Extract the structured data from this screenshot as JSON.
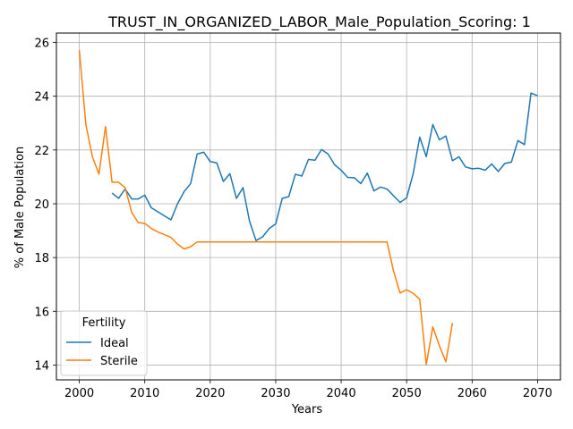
{
  "chart_data": {
    "type": "line",
    "title": "TRUST_IN_ORGANIZED_LABOR_Male_Population_Scoring: 1",
    "xlabel": "Years",
    "ylabel": "% of Male Population",
    "xlim": [
      1996.5,
      2073.5
    ],
    "ylim": [
      13.45,
      26.35
    ],
    "xticks": [
      2000,
      2010,
      2020,
      2030,
      2040,
      2050,
      2060,
      2070
    ],
    "yticks": [
      14,
      16,
      18,
      20,
      22,
      24,
      26
    ],
    "grid": true,
    "legend": {
      "title": "Fertility",
      "position": "lower-left"
    },
    "series": [
      {
        "name": "Ideal",
        "color": "#1f77b4",
        "x": [
          2005,
          2006,
          2007,
          2008,
          2009,
          2010,
          2011,
          2012,
          2013,
          2014,
          2015,
          2016,
          2017,
          2018,
          2019,
          2020,
          2021,
          2022,
          2023,
          2024,
          2025,
          2026,
          2027,
          2028,
          2029,
          2030,
          2031,
          2032,
          2033,
          2034,
          2035,
          2036,
          2037,
          2038,
          2039,
          2040,
          2041,
          2042,
          2043,
          2044,
          2045,
          2046,
          2047,
          2048,
          2049,
          2050,
          2051,
          2052,
          2053,
          2054,
          2055,
          2056,
          2057,
          2058,
          2059,
          2060,
          2061,
          2062,
          2063,
          2064,
          2065,
          2066,
          2067,
          2068,
          2069,
          2070
        ],
        "y": [
          20.4,
          20.2,
          20.55,
          20.18,
          20.18,
          20.32,
          19.85,
          19.7,
          19.55,
          19.4,
          20.0,
          20.45,
          20.75,
          21.85,
          21.92,
          21.57,
          21.52,
          20.83,
          21.12,
          20.2,
          20.6,
          19.35,
          18.63,
          18.77,
          19.08,
          19.25,
          20.2,
          20.27,
          21.1,
          21.03,
          21.65,
          21.62,
          22.02,
          21.85,
          21.45,
          21.25,
          20.98,
          20.97,
          20.75,
          21.14,
          20.48,
          20.62,
          20.55,
          20.3,
          20.05,
          20.22,
          21.12,
          22.48,
          21.75,
          22.95,
          22.38,
          22.52,
          21.6,
          21.75,
          21.37,
          21.3,
          21.32,
          21.25,
          21.48,
          21.2,
          21.5,
          21.55,
          22.35,
          22.2,
          24.12,
          24.02
        ]
      },
      {
        "name": "Sterile",
        "color": "#ff7f0e",
        "x": [
          2000,
          2001,
          2002,
          2003,
          2004,
          2005,
          2006,
          2007,
          2008,
          2009,
          2010,
          2011,
          2012,
          2013,
          2014,
          2015,
          2016,
          2017,
          2018,
          2019,
          2020,
          2021,
          2022,
          2023,
          2024,
          2025,
          2026,
          2027,
          2028,
          2029,
          2030,
          2031,
          2032,
          2033,
          2034,
          2035,
          2036,
          2037,
          2038,
          2039,
          2040,
          2041,
          2042,
          2043,
          2044,
          2045,
          2046,
          2047,
          2048,
          2049,
          2050,
          2051,
          2052,
          2053,
          2054,
          2055,
          2056,
          2057
        ],
        "y": [
          25.72,
          22.95,
          21.75,
          21.1,
          22.87,
          20.8,
          20.8,
          20.6,
          19.68,
          19.3,
          19.27,
          19.08,
          18.95,
          18.85,
          18.75,
          18.5,
          18.32,
          18.4,
          18.58,
          18.58,
          18.58,
          18.58,
          18.58,
          18.58,
          18.58,
          18.58,
          18.58,
          18.58,
          18.58,
          18.58,
          18.58,
          18.58,
          18.58,
          18.58,
          18.58,
          18.58,
          18.58,
          18.58,
          18.58,
          18.58,
          18.58,
          18.58,
          18.58,
          18.58,
          18.58,
          18.58,
          18.58,
          18.58,
          17.5,
          16.68,
          16.8,
          16.67,
          16.45,
          14.02,
          15.42,
          14.72,
          14.12,
          15.57
        ]
      }
    ]
  }
}
